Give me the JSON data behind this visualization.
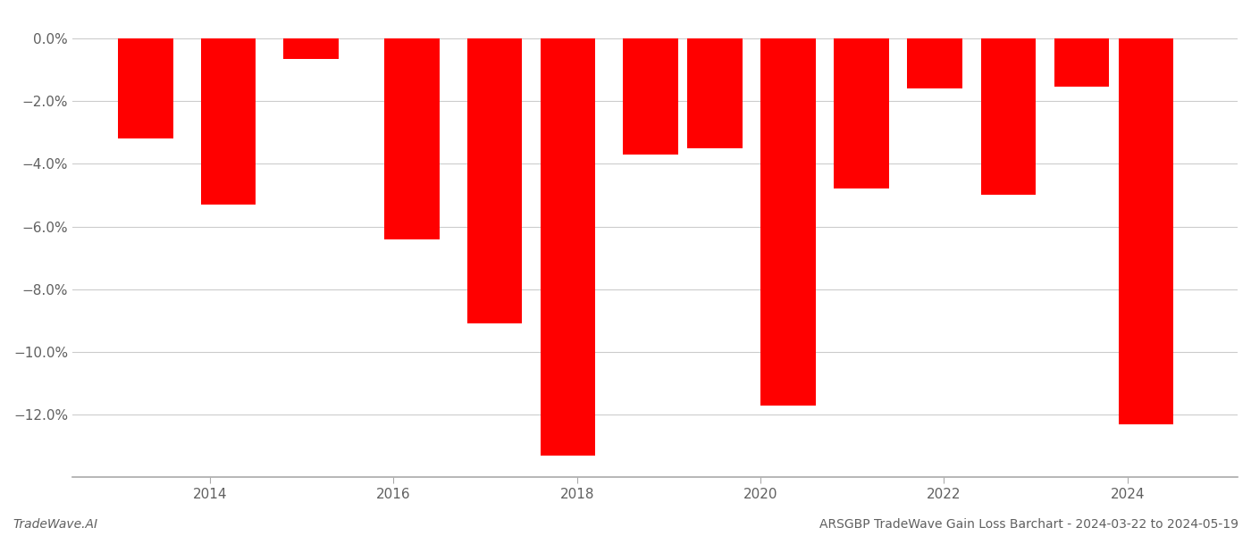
{
  "x_positions": [
    2013.3,
    2014.2,
    2015.1,
    2016.2,
    2017.1,
    2017.9,
    2018.8,
    2019.5,
    2020.3,
    2021.1,
    2021.9,
    2022.7,
    2023.5,
    2024.2
  ],
  "values": [
    -3.2,
    -5.3,
    -0.65,
    -6.4,
    -9.1,
    -13.3,
    -3.7,
    -3.5,
    -11.7,
    -4.8,
    -1.6,
    -5.0,
    -1.55,
    -12.3
  ],
  "bar_color": "#ff0000",
  "bar_width": 0.6,
  "ylim": [
    -14.0,
    0.8
  ],
  "yticks": [
    0.0,
    -2.0,
    -4.0,
    -6.0,
    -8.0,
    -10.0,
    -12.0
  ],
  "ytick_labels": [
    "0.0%",
    "−2.0%",
    "−4.0%",
    "−6.0%",
    "−8.0%",
    "−10.0%",
    "−12.0%"
  ],
  "xticks": [
    2014,
    2016,
    2018,
    2020,
    2022,
    2024
  ],
  "xlim": [
    2012.5,
    2025.2
  ],
  "footer_left": "TradeWave.AI",
  "footer_right": "ARSGBP TradeWave Gain Loss Barchart - 2024-03-22 to 2024-05-19",
  "background_color": "#ffffff",
  "grid_color": "#cccccc",
  "text_color": "#606060",
  "spine_color": "#aaaaaa"
}
